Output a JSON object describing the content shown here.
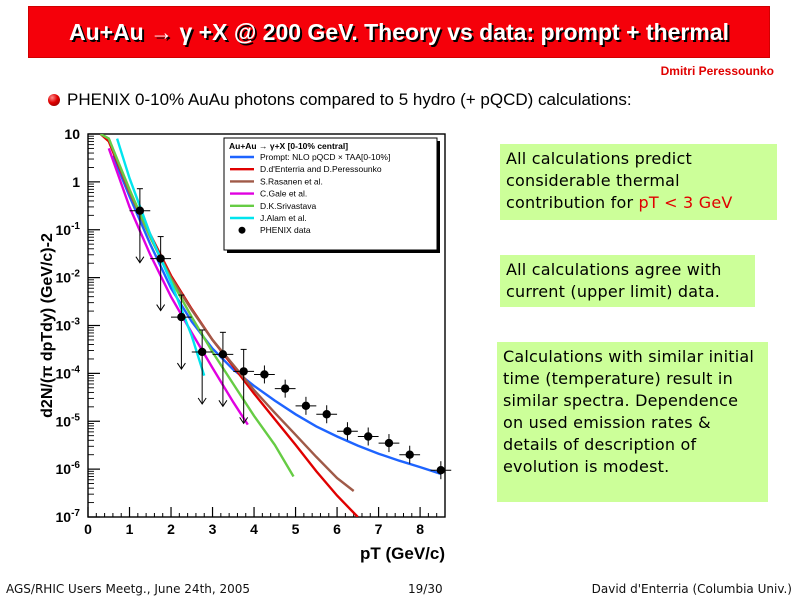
{
  "slide": {
    "title": "Au+Au → γ +X @ 200 GeV. Theory vs data: prompt + thermal",
    "author": "Dmitri Peressounko",
    "bullet": "PHENIX 0-10% AuAu photons compared to 5 hydro (+ pQCD) calculations:",
    "notes": [
      {
        "pre": "All calculations predict considerable thermal contribution for ",
        "hl": "pT < 3 GeV"
      },
      {
        "text": "All calculations agree with current (upper limit) data."
      },
      {
        "text": "Calculations with similar initial time (temperature) result in similar spectra. Dependence on used emission rates & details of description of evolution is modest."
      }
    ],
    "footer": {
      "left": "AGS/RHIC Users Meetg., June 24th, 2005",
      "center": "19/30",
      "right": "David d'Enterria (Columbia Univ.)"
    },
    "colors": {
      "title_bg": "#f5000a",
      "note_bg": "#ccff99",
      "highlight": "#e00000"
    }
  },
  "chart_data": {
    "type": "line",
    "xlabel": "pT (GeV/c)",
    "ylabel": "d2N/(π dpTdy) (GeV/c)-2",
    "xlim": [
      0,
      8.6
    ],
    "ylim": [
      1e-07,
      10
    ],
    "yscale": "log",
    "x_ticks": [
      "0",
      "1",
      "2",
      "3",
      "4",
      "5",
      "6",
      "7",
      "8"
    ],
    "y_ticks": [
      "10",
      "1",
      "10-1",
      "10-2",
      "10-3",
      "10-4",
      "10-5",
      "10-6",
      "10-7"
    ],
    "legend_title": "Au+Au → γ+X [0-10% central]",
    "legend_position": "top-right",
    "series": [
      {
        "name": "Prompt: NLO pQCD × TAA[0-10%]",
        "color": "#1e64ff",
        "x": [
          0.6,
          1.0,
          1.5,
          2.0,
          2.5,
          3.0,
          3.5,
          4.0,
          4.5,
          5.0,
          5.5,
          6.0,
          6.5,
          7.0,
          7.5,
          8.0,
          8.5
        ],
        "y": [
          3.5,
          0.5,
          0.05,
          0.006,
          0.0012,
          0.00033,
          0.00012,
          5.5e-05,
          2.7e-05,
          1.4e-05,
          7.8e-06,
          4.8e-06,
          3.1e-06,
          2.1e-06,
          1.5e-06,
          1.1e-06,
          8e-07
        ]
      },
      {
        "name": "D.d'Enterria and D.Peressounko",
        "color": "#e00000",
        "x": [
          0.3,
          0.5,
          1.0,
          1.5,
          2.0,
          2.5,
          3.0,
          3.5,
          4.0,
          4.5,
          5.0,
          5.5,
          6.0,
          6.5
        ],
        "y": [
          10,
          7,
          0.6,
          0.08,
          0.011,
          0.0022,
          0.0005,
          0.00014,
          3.8e-05,
          1.1e-05,
          3.2e-06,
          9e-07,
          2.8e-07,
          1e-07
        ]
      },
      {
        "name": "S.Rasanen et al.",
        "color": "#a05a48",
        "x": [
          0.3,
          0.5,
          1.0,
          1.5,
          2.0,
          2.5,
          3.0,
          3.5,
          4.0,
          4.5,
          5.0,
          5.5,
          6.0,
          6.4
        ],
        "y": [
          10,
          8,
          0.6,
          0.07,
          0.01,
          0.0021,
          0.0005,
          0.00015,
          4.5e-05,
          1.5e-05,
          5.2e-06,
          1.8e-06,
          6.5e-07,
          3.5e-07
        ]
      },
      {
        "name": "C.Gale et al.",
        "color": "#e000e0",
        "x": [
          0.5,
          1.0,
          1.5,
          2.0,
          2.5,
          3.0,
          3.5,
          3.85
        ],
        "y": [
          5,
          0.3,
          0.03,
          0.004,
          0.0007,
          0.00013,
          2.5e-05,
          8.5e-06
        ]
      },
      {
        "name": "D.K.Srivastava",
        "color": "#66cc44",
        "x": [
          0.3,
          0.5,
          1.0,
          1.5,
          2.0,
          2.5,
          3.0,
          3.5,
          4.0,
          4.5,
          4.95
        ],
        "y": [
          10,
          8,
          0.7,
          0.07,
          0.009,
          0.0015,
          0.00028,
          6e-05,
          1.3e-05,
          3.2e-06,
          7e-07
        ]
      },
      {
        "name": "J.Alam et al.",
        "color": "#00e5ee",
        "x": [
          0.7,
          1.0,
          1.5,
          2.0,
          2.5,
          2.8
        ],
        "y": [
          8,
          1.2,
          0.08,
          0.008,
          0.0006,
          9e-05
        ]
      }
    ],
    "data_label": "PHENIX data",
    "points": [
      {
        "x": 1.25,
        "y": 0.25,
        "ul": true
      },
      {
        "x": 1.75,
        "y": 0.025,
        "ul": true
      },
      {
        "x": 2.25,
        "y": 0.0015,
        "ul": true
      },
      {
        "x": 2.75,
        "y": 0.00028,
        "ul": true
      },
      {
        "x": 3.25,
        "y": 0.00025,
        "ul": true
      },
      {
        "x": 3.75,
        "y": 0.00011,
        "ul": true
      },
      {
        "x": 4.25,
        "y": 9.5e-05,
        "ul": false
      },
      {
        "x": 4.75,
        "y": 4.8e-05,
        "ul": false
      },
      {
        "x": 5.25,
        "y": 2.1e-05,
        "ul": false
      },
      {
        "x": 5.75,
        "y": 1.4e-05,
        "ul": false
      },
      {
        "x": 6.25,
        "y": 6.2e-06,
        "ul": false
      },
      {
        "x": 6.75,
        "y": 4.8e-06,
        "ul": false
      },
      {
        "x": 7.25,
        "y": 3.5e-06,
        "ul": false
      },
      {
        "x": 7.75,
        "y": 2e-06,
        "ul": false
      },
      {
        "x": 8.5,
        "y": 9.5e-07,
        "ul": false
      }
    ]
  }
}
